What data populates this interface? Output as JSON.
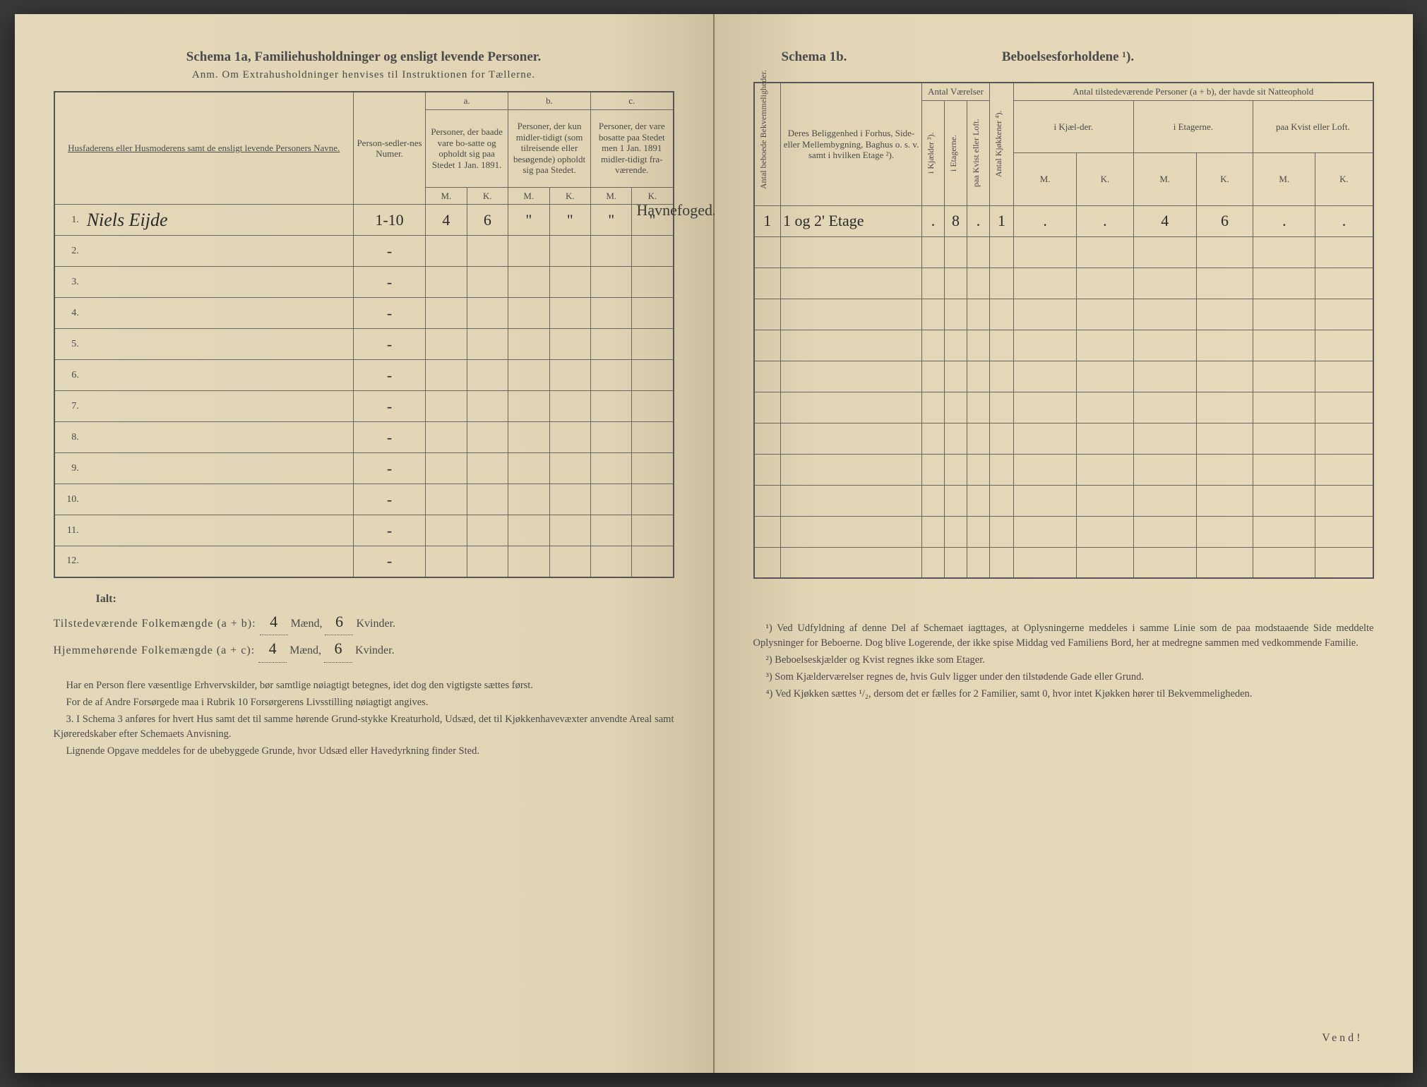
{
  "left": {
    "title": "Schema 1a,   Familiehusholdninger og ensligt levende Personer.",
    "subtitle": "Anm. Om Extrahusholdninger henvises til Instruktionen for Tællerne.",
    "headers": {
      "name": "Husfaderens eller Husmoderens samt de ensligt levende Personers Navne.",
      "numer": "Person-sedler-nes Numer.",
      "a_label": "a.",
      "a_text": "Personer, der baade vare bo-satte og opholdt sig paa Stedet 1 Jan. 1891.",
      "b_label": "b.",
      "b_text": "Personer, der kun midler-tidigt (som tilreisende eller besøgende) opholdt sig paa Stedet.",
      "c_label": "c.",
      "c_text": "Personer, der vare bosatte paa Stedet men 1 Jan. 1891 midler-tidigt fra-værende.",
      "M": "M.",
      "K": "K."
    },
    "rows": [
      {
        "n": "1.",
        "name": "Niels Eijde",
        "numer": "1-10",
        "aM": "4",
        "aK": "6",
        "bM": "\"",
        "bK": "\"",
        "cM": "\"",
        "cK": "\"",
        "note": "Havnefoged."
      },
      {
        "n": "2."
      },
      {
        "n": "3."
      },
      {
        "n": "4."
      },
      {
        "n": "5."
      },
      {
        "n": "6."
      },
      {
        "n": "7."
      },
      {
        "n": "8."
      },
      {
        "n": "9."
      },
      {
        "n": "10."
      },
      {
        "n": "11."
      },
      {
        "n": "12."
      }
    ],
    "totals": {
      "ialt": "Ialt:",
      "line1a": "Tilstedeværende Folkemængde (a + b): ",
      "line1_m": "4",
      "maend": "Mænd,",
      "line1_k": "6",
      "kvinder": "Kvinder.",
      "line2a": "Hjemmehørende Folkemængde (a + c): ",
      "line2_m": "4",
      "line2_k": "6"
    },
    "footnotes": [
      "Har en Person flere væsentlige Erhvervskilder, bør samtlige nøiagtigt betegnes, idet dog den vigtigste sættes først.",
      "For de af Andre Forsørgede maa i Rubrik 10 Forsørgerens Livsstilling nøiagtigt angives.",
      "3. I Schema 3 anføres for hvert Hus samt det til samme hørende Grund-stykke Kreaturhold, Udsæd, det til Kjøkkenhavevæxter anvendte Areal samt Kjøreredskaber efter Schemaets Anvisning.",
      "Lignende Opgave meddeles for de ubebyggede Grunde, hvor Udsæd eller Havedyrkning finder Sted."
    ]
  },
  "right": {
    "title_left": "Schema 1b.",
    "title_right": "Beboelsesforholdene ¹).",
    "headers": {
      "antal_bekv": "Antal beboede Bekvemmeligheder.",
      "belig": "Deres Beliggenhed i Forhus, Side- eller Mellembygning, Baghus o. s. v. samt i hvilken Etage ²).",
      "antal_vaer": "Antal Værelser",
      "kjaelder": "i Kjælder ³).",
      "etagerne": "i Etagerne.",
      "kvist": "paa Kvist eller Loft.",
      "kjok": "Antal Kjøkkener ⁴).",
      "tilstede": "Antal tilstedeværende Personer (a + b), der havde sit Natteophold",
      "ikjael": "i Kjæl-der.",
      "ietag": "i Etagerne.",
      "paakvist": "paa Kvist eller Loft.",
      "M": "M.",
      "K": "K."
    },
    "rows": [
      {
        "bekv": "1",
        "belig": "1 og 2' Etage",
        "kj": ".",
        "et": "8",
        "kv": ".",
        "kk": "1",
        "km": ".",
        "kk2": ".",
        "em": "4",
        "ek": "6",
        "pm": ".",
        "pk": "."
      }
    ],
    "footnotes": [
      "¹) Ved Udfyldning af denne Del af Schemaet iagttages, at Oplysningerne meddeles i samme Linie som de paa modstaaende Side meddelte Oplysninger for Beboerne. Dog blive Logerende, der ikke spise Middag ved Familiens Bord, her at medregne sammen med vedkommende Familie.",
      "²) Beboelseskjælder og Kvist regnes ikke som Etager.",
      "³) Som Kjælderværelser regnes de, hvis Gulv ligger under den tilstødende Gade eller Grund.",
      "⁴) Ved Kjøkken sættes ¹/₂, dersom det er fælles for 2 Familier, samt 0, hvor intet Kjøkken hører til Bekvemmeligheden."
    ],
    "vend": "Vend!"
  }
}
